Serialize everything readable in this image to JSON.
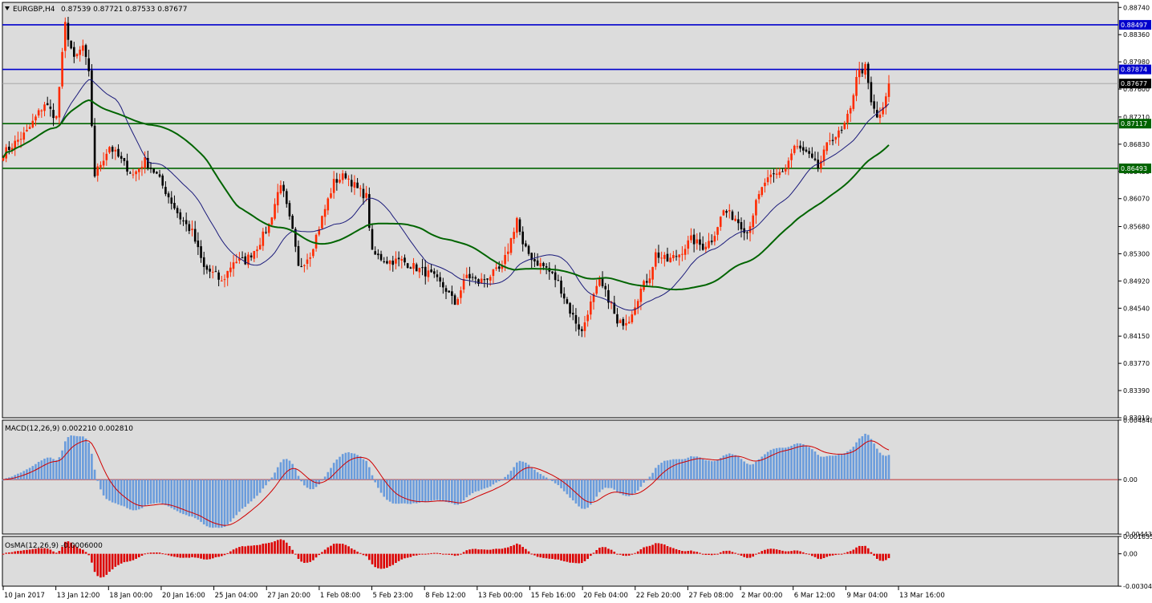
{
  "header": {
    "symbol": "EURGBP,H4",
    "ohlc": "0.87539 0.87721 0.87533 0.87677"
  },
  "colors": {
    "background": "#dcdcdc",
    "panel_border": "#000000",
    "bull_candle": "#ff2a00",
    "bear_candle": "#000000",
    "ma_fast": "#1a1a7a",
    "ma_slow": "#006400",
    "resistance_line": "#0000cc",
    "support_line": "#006400",
    "macd_hist": "#6a9cdc",
    "macd_signal": "#d00000",
    "osma_hist": "#dd0000",
    "zero_line": "#c03030",
    "price_tag_current": "#000000"
  },
  "chart_data": [
    {
      "type": "candlestick",
      "title": "EURGBP,H4",
      "ylim": [
        0.8301,
        0.8881
      ],
      "y_ticks": [
        "0.88740",
        "0.88360",
        "0.87980",
        "0.87600",
        "0.87210",
        "0.86830",
        "0.86450",
        "0.86070",
        "0.85680",
        "0.85300",
        "0.84920",
        "0.84540",
        "0.84150",
        "0.83770",
        "0.83390",
        "0.83010"
      ],
      "x_tick_labels": [
        "10 Jan 2017",
        "13 Jan 12:00",
        "18 Jan 00:00",
        "20 Jan 16:00",
        "25 Jan 04:00",
        "27 Jan 20:00",
        "1 Feb 08:00",
        "5 Feb 23:00",
        "8 Feb 12:00",
        "13 Feb 00:00",
        "15 Feb 16:00",
        "20 Feb 04:00",
        "22 Feb 20:00",
        "27 Feb 08:00",
        "2 Mar 00:00",
        "6 Mar 12:00",
        "9 Mar 04:00",
        "13 Mar 16:00"
      ],
      "price_path_keypoints": [
        [
          0,
          0.867
        ],
        [
          8,
          0.87
        ],
        [
          14,
          0.874
        ],
        [
          18,
          0.872
        ],
        [
          21,
          0.885
        ],
        [
          24,
          0.88
        ],
        [
          27,
          0.882
        ],
        [
          29,
          0.878
        ],
        [
          31,
          0.864
        ],
        [
          36,
          0.868
        ],
        [
          40,
          0.866
        ],
        [
          44,
          0.864
        ],
        [
          48,
          0.866
        ],
        [
          52,
          0.864
        ],
        [
          56,
          0.861
        ],
        [
          60,
          0.858
        ],
        [
          64,
          0.856
        ],
        [
          68,
          0.851
        ],
        [
          72,
          0.85
        ],
        [
          74,
          0.849
        ],
        [
          78,
          0.852
        ],
        [
          82,
          0.852
        ],
        [
          86,
          0.854
        ],
        [
          90,
          0.857
        ],
        [
          94,
          0.863
        ],
        [
          98,
          0.856
        ],
        [
          100,
          0.851
        ],
        [
          104,
          0.853
        ],
        [
          108,
          0.858
        ],
        [
          112,
          0.863
        ],
        [
          116,
          0.864
        ],
        [
          120,
          0.862
        ],
        [
          123,
          0.861
        ],
        [
          125,
          0.853
        ],
        [
          130,
          0.852
        ],
        [
          135,
          0.852
        ],
        [
          140,
          0.851
        ],
        [
          145,
          0.85
        ],
        [
          150,
          0.848
        ],
        [
          153,
          0.846
        ],
        [
          157,
          0.85
        ],
        [
          161,
          0.849
        ],
        [
          165,
          0.85
        ],
        [
          169,
          0.851
        ],
        [
          172,
          0.855
        ],
        [
          174,
          0.858
        ],
        [
          176,
          0.854
        ],
        [
          180,
          0.852
        ],
        [
          184,
          0.851
        ],
        [
          188,
          0.849
        ],
        [
          192,
          0.845
        ],
        [
          196,
          0.842
        ],
        [
          198,
          0.845
        ],
        [
          202,
          0.849
        ],
        [
          206,
          0.846
        ],
        [
          208,
          0.843
        ],
        [
          212,
          0.844
        ],
        [
          216,
          0.848
        ],
        [
          219,
          0.85
        ],
        [
          221,
          0.853
        ],
        [
          225,
          0.852
        ],
        [
          229,
          0.853
        ],
        [
          233,
          0.855
        ],
        [
          237,
          0.854
        ],
        [
          240,
          0.855
        ],
        [
          244,
          0.859
        ],
        [
          248,
          0.858
        ],
        [
          252,
          0.856
        ],
        [
          255,
          0.86
        ],
        [
          258,
          0.863
        ],
        [
          262,
          0.864
        ],
        [
          265,
          0.865
        ],
        [
          268,
          0.868
        ],
        [
          272,
          0.867
        ],
        [
          276,
          0.865
        ],
        [
          280,
          0.869
        ],
        [
          284,
          0.87
        ],
        [
          287,
          0.873
        ],
        [
          289,
          0.878
        ],
        [
          292,
          0.879
        ],
        [
          294,
          0.874
        ],
        [
          296,
          0.872
        ],
        [
          298,
          0.873
        ],
        [
          300,
          0.8768
        ]
      ],
      "moving_averages": [
        {
          "period": "fast",
          "color_key": "ma_fast"
        },
        {
          "period": "slow",
          "color_key": "ma_slow"
        }
      ],
      "horizontal_levels": [
        {
          "value": 0.88497,
          "label": "0.88497",
          "color_key": "resistance_line"
        },
        {
          "value": 0.87874,
          "label": "0.87874",
          "color_key": "resistance_line"
        },
        {
          "value": 0.87117,
          "label": "0.87117",
          "color_key": "support_line"
        },
        {
          "value": 0.86493,
          "label": "0.86493",
          "color_key": "support_line"
        }
      ],
      "current_price": {
        "value": 0.87677,
        "label": "0.87677"
      }
    },
    {
      "type": "bar",
      "title": "MACD(12,26,9) 0.002210 0.002810",
      "ylim": [
        -0.00443,
        0.00484
      ],
      "y_ticks": [
        "0.004848",
        "0.00",
        "-0.004438"
      ]
    },
    {
      "type": "bar",
      "title": "OsMA(12,26,9) -0.0006000",
      "ylim": [
        -0.00304,
        0.00163
      ],
      "y_ticks": [
        "0.001635",
        "0.00",
        "-0.003045"
      ]
    }
  ]
}
